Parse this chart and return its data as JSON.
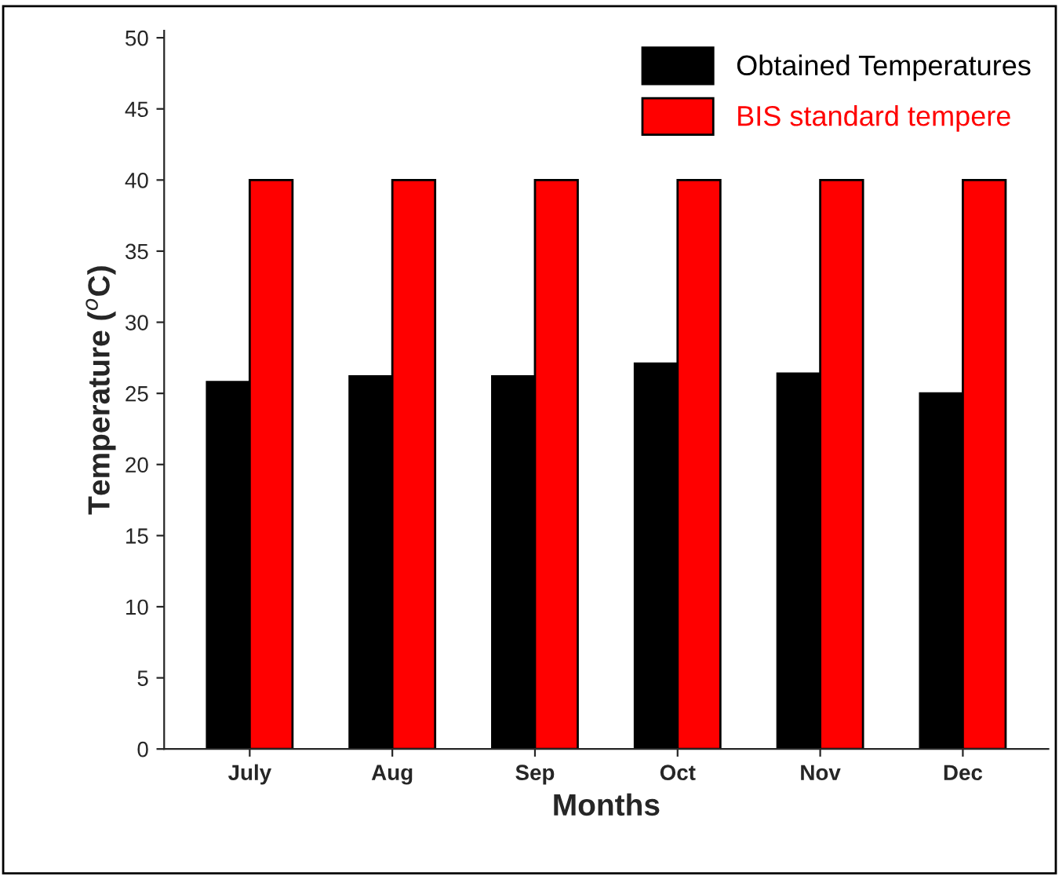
{
  "chart_data": {
    "type": "bar",
    "xlabel": "Months",
    "ylabel": "Temperature ($^{o}$C)",
    "categories": [
      "July",
      "Aug",
      "Sep",
      "Oct",
      "Nov",
      "Dec"
    ],
    "series": [
      {
        "name": "Obtained Temperatures",
        "color": "#000000",
        "values": [
          25.8,
          26.2,
          26.2,
          27.1,
          26.4,
          25.0
        ]
      },
      {
        "name": "BIS standard tempere",
        "color": "#ff0000",
        "values": [
          40,
          40,
          40,
          40,
          40,
          40
        ]
      }
    ],
    "ylim": [
      0,
      50.5
    ],
    "yticks": [
      0,
      5,
      10,
      15,
      20,
      25,
      30,
      35,
      40,
      45,
      50
    ],
    "grid": false,
    "legend": "top right"
  }
}
